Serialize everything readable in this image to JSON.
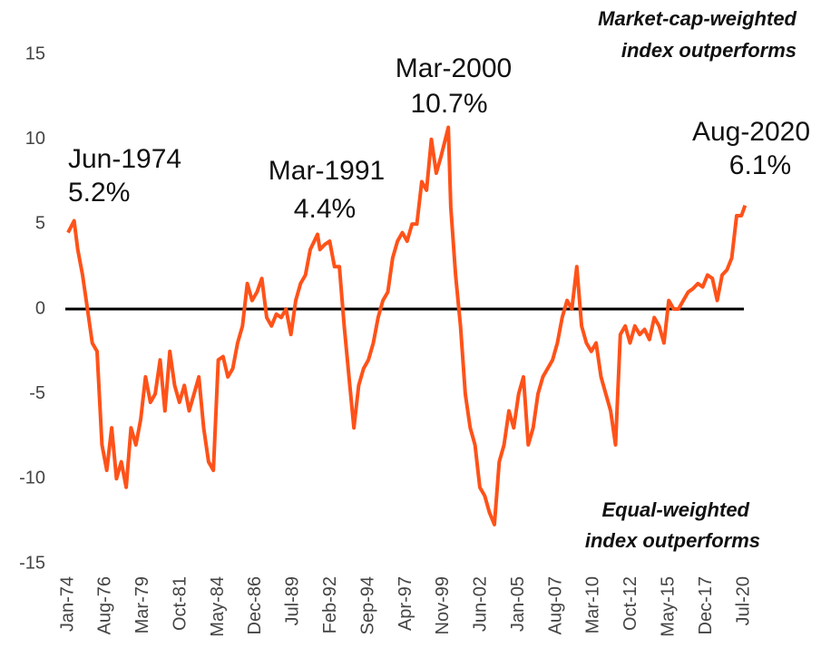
{
  "chart_data": {
    "type": "line",
    "top_note": [
      "Market-cap-weighted",
      "index outperforms"
    ],
    "bottom_note": [
      "Equal-weighted",
      "index outperforms"
    ],
    "annotations": [
      [
        "Jun-1974",
        "5.2%"
      ],
      [
        "Mar-1991",
        "4.4%"
      ],
      [
        "Mar-2000",
        "10.7%"
      ],
      [
        "Aug-2020",
        "6.1%"
      ]
    ],
    "x": [
      "Jan-74",
      "Jun-74",
      "Sep-74",
      "Jan-75",
      "May-75",
      "Sep-75",
      "Jan-76",
      "May-76",
      "Sep-76",
      "Jan-77",
      "May-77",
      "Sep-77",
      "Jan-78",
      "May-78",
      "Sep-78",
      "Jan-79",
      "May-79",
      "Sep-79",
      "Jan-80",
      "May-80",
      "Sep-80",
      "Jan-81",
      "May-81",
      "Sep-81",
      "Jan-82",
      "May-82",
      "Sep-82",
      "Jan-83",
      "May-83",
      "Sep-83",
      "Jan-84",
      "May-84",
      "Sep-84",
      "Jan-85",
      "May-85",
      "Sep-85",
      "Jan-86",
      "May-86",
      "Sep-86",
      "Jan-87",
      "May-87",
      "Sep-87",
      "Jan-88",
      "May-88",
      "Sep-88",
      "Jan-89",
      "May-89",
      "Sep-89",
      "Jan-90",
      "May-90",
      "Sep-90",
      "Mar-91",
      "May-91",
      "Sep-91",
      "Jan-92",
      "May-92",
      "Sep-92",
      "Jan-93",
      "May-93",
      "Sep-93",
      "Jan-94",
      "May-94",
      "Sep-94",
      "Jan-95",
      "May-95",
      "Sep-95",
      "Jan-96",
      "May-96",
      "Sep-96",
      "Jan-97",
      "May-97",
      "Sep-97",
      "Jan-98",
      "May-98",
      "Sep-98",
      "Jan-99",
      "May-99",
      "Sep-99",
      "Mar-00",
      "May-00",
      "Sep-00",
      "Jan-01",
      "May-01",
      "Sep-01",
      "Jan-02",
      "May-02",
      "Sep-02",
      "Jan-03",
      "May-03",
      "Sep-03",
      "Jan-04",
      "May-04",
      "Sep-04",
      "Jan-05",
      "May-05",
      "Sep-05",
      "Jan-06",
      "May-06",
      "Sep-06",
      "Jan-07",
      "May-07",
      "Sep-07",
      "Jan-08",
      "May-08",
      "Sep-08",
      "Jan-09",
      "May-09",
      "Sep-09",
      "Jan-10",
      "May-10",
      "Sep-10",
      "Jan-11",
      "May-11",
      "Sep-11",
      "Jan-12",
      "May-12",
      "Sep-12",
      "Jan-13",
      "May-13",
      "Sep-13",
      "Jan-14",
      "May-14",
      "Sep-14",
      "Jan-15",
      "May-15",
      "Sep-15",
      "Jan-16",
      "May-16",
      "Sep-16",
      "Jan-17",
      "May-17",
      "Sep-17",
      "Jan-18",
      "May-18",
      "Sep-18",
      "Jan-19",
      "May-19",
      "Sep-19",
      "Jan-20",
      "May-20",
      "Aug-20"
    ],
    "series": [
      {
        "color": "#ff5219",
        "values": [
          4.5,
          5.2,
          3.5,
          2,
          0,
          -2,
          -2.5,
          -8,
          -9.5,
          -7,
          -10,
          -9,
          -10.5,
          -7,
          -8,
          -6.5,
          -4,
          -5.5,
          -5,
          -3,
          -6,
          -2.5,
          -4.5,
          -5.5,
          -4.5,
          -6,
          -5,
          -4,
          -7,
          -9,
          -9.5,
          -3,
          -2.8,
          -4,
          -3.5,
          -2,
          -1,
          1.5,
          0.5,
          1,
          1.8,
          -0.5,
          -1,
          -0.3,
          -0.5,
          0,
          -1.5,
          0.5,
          1.5,
          2,
          3.5,
          4.4,
          3.5,
          3.8,
          4,
          2.5,
          2.5,
          -1,
          -4,
          -7,
          -4.5,
          -3.5,
          -3,
          -2,
          -0.5,
          0.5,
          1,
          3,
          4,
          4.5,
          4,
          5,
          5,
          7.5,
          7,
          10,
          8,
          9,
          10.7,
          6,
          2,
          -1,
          -5,
          -7,
          -8,
          -10.5,
          -11,
          -12,
          -12.7,
          -9,
          -8,
          -6,
          -7,
          -5,
          -4,
          -8,
          -7,
          -5,
          -4,
          -3.5,
          -3,
          -2,
          -0.5,
          0.5,
          0,
          2.5,
          -1,
          -2,
          -2.5,
          -2,
          -4,
          -5,
          -6,
          -8,
          -1.5,
          -1,
          -2,
          -1,
          -1.5,
          -1.2,
          -1.8,
          -0.5,
          -1,
          -2,
          0.5,
          0,
          0,
          0.5,
          1,
          1.2,
          1.5,
          1.3,
          2,
          1.8,
          0.5,
          2,
          2.3,
          3,
          5.5,
          5.5,
          6.1
        ]
      }
    ],
    "xticks": [
      "Jan-74",
      "Aug-76",
      "Mar-79",
      "Oct-81",
      "May-84",
      "Dec-86",
      "Jul-89",
      "Feb-92",
      "Sep-94",
      "Apr-97",
      "Nov-99",
      "Jun-02",
      "Jan-05",
      "Aug-07",
      "Mar-10",
      "Oct-12",
      "May-15",
      "Dec-17",
      "Jul-20"
    ],
    "ylim": [
      -15,
      15
    ],
    "yticks": [
      -15,
      -10,
      -5,
      0,
      5,
      10,
      15
    ],
    "zero_line": true
  }
}
